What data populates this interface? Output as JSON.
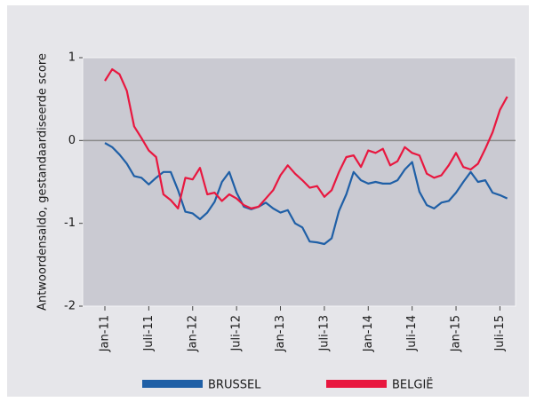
{
  "chart_data": {
    "type": "line",
    "y_label": "Antwoordensaldo, gestandaardiseerde score",
    "categories": [
      "Jan-11",
      null,
      null,
      null,
      null,
      null,
      "Juli-11",
      null,
      null,
      null,
      null,
      null,
      "Jan-12",
      null,
      null,
      null,
      null,
      null,
      "Juli-12",
      null,
      null,
      null,
      null,
      null,
      "Jan-13",
      null,
      null,
      null,
      null,
      null,
      "Juli-13",
      null,
      null,
      null,
      null,
      null,
      "Jan-14",
      null,
      null,
      null,
      null,
      null,
      "Juli-14",
      null,
      null,
      null,
      null,
      null,
      "Jan-15",
      null,
      null,
      null,
      null,
      null,
      "Juli-15",
      null
    ],
    "series": [
      {
        "name": "BRUSSEL",
        "color": "#1f5fa6",
        "values": [
          -0.03,
          -0.08,
          -0.17,
          -0.28,
          -0.43,
          -0.45,
          -0.53,
          -0.45,
          -0.38,
          -0.38,
          -0.6,
          -0.86,
          -0.88,
          -0.95,
          -0.87,
          -0.74,
          -0.5,
          -0.38,
          -0.63,
          -0.8,
          -0.83,
          -0.8,
          -0.75,
          -0.82,
          -0.87,
          -0.84,
          -1.0,
          -1.05,
          -1.22,
          -1.23,
          -1.25,
          -1.18,
          -0.85,
          -0.65,
          -0.38,
          -0.48,
          -0.52,
          -0.5,
          -0.52,
          -0.52,
          -0.48,
          -0.35,
          -0.26,
          -0.62,
          -0.78,
          -0.82,
          -0.75,
          -0.73,
          -0.63,
          -0.5,
          -0.38,
          -0.5,
          -0.48,
          -0.63,
          -0.66,
          -0.7
        ]
      },
      {
        "name": "BELGIË",
        "color": "#e8173f",
        "values": [
          0.72,
          0.86,
          0.8,
          0.6,
          0.17,
          0.03,
          -0.12,
          -0.2,
          -0.65,
          -0.72,
          -0.82,
          -0.45,
          -0.47,
          -0.33,
          -0.65,
          -0.63,
          -0.73,
          -0.65,
          -0.7,
          -0.78,
          -0.82,
          -0.8,
          -0.7,
          -0.6,
          -0.42,
          -0.3,
          -0.4,
          -0.48,
          -0.57,
          -0.55,
          -0.68,
          -0.6,
          -0.38,
          -0.2,
          -0.18,
          -0.32,
          -0.12,
          -0.15,
          -0.1,
          -0.3,
          -0.25,
          -0.08,
          -0.15,
          -0.18,
          -0.4,
          -0.45,
          -0.42,
          -0.3,
          -0.15,
          -0.32,
          -0.35,
          -0.28,
          -0.1,
          0.1,
          0.37,
          0.53
        ]
      }
    ],
    "ylim": [
      -2,
      1
    ],
    "yticks": [
      1,
      0,
      -1,
      -2
    ],
    "zero_line": true
  }
}
